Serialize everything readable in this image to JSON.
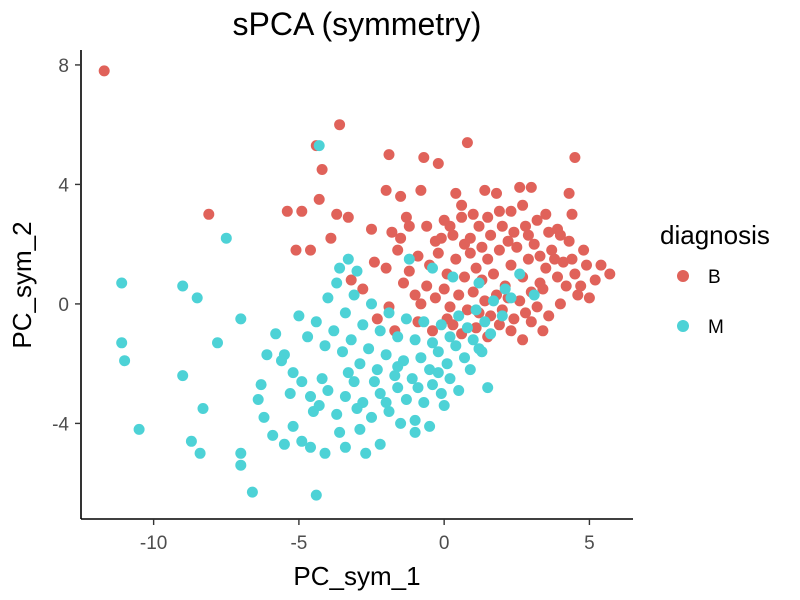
{
  "chart_data": {
    "type": "scatter",
    "title": "sPCA (symmetry)",
    "xlabel": "PC_sym_1",
    "ylabel": "PC_sym_2",
    "xlim": [
      -12.5,
      6.5
    ],
    "ylim": [
      -7.2,
      8.5
    ],
    "x_ticks": [
      -10,
      -5,
      0,
      5
    ],
    "y_ticks": [
      8,
      4,
      0,
      -4
    ],
    "x_tick_labels": [
      "-10",
      "-5",
      "0",
      "5"
    ],
    "y_tick_labels": [
      "8",
      "4",
      "0",
      "-4"
    ],
    "grid": false,
    "legend": {
      "title": "diagnosis",
      "placement": "right"
    },
    "series": [
      {
        "name": "B",
        "color": "#E0625A",
        "points": [
          [
            -11.7,
            7.8
          ],
          [
            -3.6,
            6.0
          ],
          [
            -4.4,
            5.3
          ],
          [
            -4.2,
            4.5
          ],
          [
            -1.9,
            5.0
          ],
          [
            -0.7,
            4.9
          ],
          [
            -0.2,
            4.7
          ],
          [
            0.8,
            5.4
          ],
          [
            4.5,
            4.9
          ],
          [
            -4.3,
            3.5
          ],
          [
            -5.4,
            3.1
          ],
          [
            -4.9,
            3.1
          ],
          [
            -3.7,
            3.0
          ],
          [
            -2.0,
            3.8
          ],
          [
            -1.5,
            3.6
          ],
          [
            -0.8,
            3.8
          ],
          [
            0.4,
            3.7
          ],
          [
            0.6,
            3.3
          ],
          [
            1.4,
            3.8
          ],
          [
            1.8,
            3.7
          ],
          [
            2.6,
            3.9
          ],
          [
            3.0,
            3.9
          ],
          [
            4.3,
            3.7
          ],
          [
            -8.1,
            3.0
          ],
          [
            -5.1,
            1.8
          ],
          [
            -4.6,
            1.8
          ],
          [
            -3.9,
            2.2
          ],
          [
            -2.5,
            2.5
          ],
          [
            -1.8,
            2.4
          ],
          [
            -1.5,
            2.2
          ],
          [
            -1.2,
            2.6
          ],
          [
            -0.3,
            2.1
          ],
          [
            0.0,
            2.8
          ],
          [
            0.3,
            2.3
          ],
          [
            0.6,
            2.9
          ],
          [
            0.9,
            2.2
          ],
          [
            1.2,
            2.6
          ],
          [
            1.5,
            2.9
          ],
          [
            2.0,
            2.6
          ],
          [
            2.3,
            3.1
          ],
          [
            2.7,
            3.3
          ],
          [
            3.2,
            2.8
          ],
          [
            3.5,
            3.0
          ],
          [
            3.9,
            2.5
          ],
          [
            4.4,
            3.0
          ],
          [
            -2.4,
            1.4
          ],
          [
            -2.0,
            1.2
          ],
          [
            -1.6,
            1.8
          ],
          [
            -1.2,
            1.1
          ],
          [
            -0.9,
            1.6
          ],
          [
            -0.5,
            1.3
          ],
          [
            -0.2,
            1.7
          ],
          [
            0.1,
            1.0
          ],
          [
            0.4,
            1.5
          ],
          [
            0.7,
            0.9
          ],
          [
            0.9,
            1.7
          ],
          [
            1.1,
            1.2
          ],
          [
            1.3,
            0.8
          ],
          [
            1.5,
            1.5
          ],
          [
            1.7,
            1.0
          ],
          [
            1.9,
            1.8
          ],
          [
            2.1,
            0.6
          ],
          [
            2.3,
            1.3
          ],
          [
            2.5,
            1.9
          ],
          [
            2.7,
            0.9
          ],
          [
            2.9,
            1.5
          ],
          [
            3.1,
            2.0
          ],
          [
            3.3,
            0.7
          ],
          [
            3.5,
            1.2
          ],
          [
            3.7,
            1.8
          ],
          [
            3.9,
            0.9
          ],
          [
            4.1,
            1.4
          ],
          [
            4.3,
            2.1
          ],
          [
            4.5,
            1.0
          ],
          [
            4.7,
            0.6
          ],
          [
            4.9,
            1.3
          ],
          [
            5.2,
            0.8
          ],
          [
            5.7,
            1.0
          ],
          [
            5.0,
            0.2
          ],
          [
            -3.2,
            0.8
          ],
          [
            -2.8,
            0.5
          ],
          [
            -1.4,
            0.7
          ],
          [
            -1.0,
            0.3
          ],
          [
            -0.6,
            0.6
          ],
          [
            -0.3,
            0.2
          ],
          [
            0.0,
            0.5
          ],
          [
            0.2,
            -0.1
          ],
          [
            0.5,
            0.3
          ],
          [
            0.8,
            -0.2
          ],
          [
            1.0,
            0.4
          ],
          [
            1.2,
            -0.3
          ],
          [
            1.4,
            0.1
          ],
          [
            1.6,
            -0.4
          ],
          [
            1.8,
            0.3
          ],
          [
            2.0,
            -0.2
          ],
          [
            2.2,
            0.2
          ],
          [
            2.4,
            -0.5
          ],
          [
            2.6,
            0.1
          ],
          [
            2.8,
            -0.3
          ],
          [
            3.0,
            0.4
          ],
          [
            3.2,
            -0.1
          ],
          [
            3.4,
            0.5
          ],
          [
            3.6,
            -0.4
          ],
          [
            4.0,
            0.0
          ],
          [
            4.2,
            0.6
          ],
          [
            4.6,
            0.3
          ],
          [
            -2.3,
            -0.5
          ],
          [
            -1.7,
            -0.9
          ],
          [
            -0.9,
            -0.6
          ],
          [
            -0.4,
            -0.9
          ],
          [
            0.3,
            -0.7
          ],
          [
            0.6,
            -1.0
          ],
          [
            1.1,
            -0.8
          ],
          [
            1.5,
            -1.1
          ],
          [
            1.9,
            -0.7
          ],
          [
            2.3,
            -0.9
          ],
          [
            2.7,
            -1.2
          ],
          [
            3.0,
            -0.6
          ],
          [
            3.4,
            -0.9
          ],
          [
            -3.3,
            2.9
          ],
          [
            -1.3,
            2.9
          ],
          [
            -0.6,
            2.6
          ],
          [
            0.2,
            2.6
          ],
          [
            1.0,
            3.0
          ],
          [
            1.9,
            3.1
          ],
          [
            2.9,
            2.3
          ],
          [
            3.6,
            2.4
          ],
          [
            -0.8,
            0.0
          ],
          [
            0.1,
            -0.5
          ],
          [
            1.3,
            1.9
          ],
          [
            2.4,
            2.4
          ],
          [
            3.8,
            1.5
          ],
          [
            4.8,
            1.8
          ],
          [
            -1.9,
            -0.1
          ],
          [
            -0.1,
            2.2
          ],
          [
            0.7,
            2.0
          ],
          [
            1.6,
            2.3
          ],
          [
            2.2,
            2.1
          ],
          [
            2.8,
            2.6
          ],
          [
            3.3,
            1.6
          ],
          [
            4.0,
            2.3
          ],
          [
            4.4,
            1.5
          ],
          [
            5.4,
            1.3
          ]
        ]
      },
      {
        "name": "M",
        "color": "#4DD2D6",
        "points": [
          [
            -4.3,
            5.3
          ],
          [
            -7.5,
            2.2
          ],
          [
            -11.1,
            0.7
          ],
          [
            -9.0,
            0.6
          ],
          [
            -8.5,
            0.2
          ],
          [
            -7.0,
            -0.5
          ],
          [
            -11.1,
            -1.3
          ],
          [
            -11.0,
            -1.9
          ],
          [
            -7.8,
            -1.3
          ],
          [
            -9.0,
            -2.4
          ],
          [
            -8.3,
            -3.5
          ],
          [
            -10.5,
            -4.2
          ],
          [
            -8.7,
            -4.6
          ],
          [
            -8.4,
            -5.0
          ],
          [
            -7.0,
            -5.0
          ],
          [
            -7.0,
            -5.4
          ],
          [
            -6.6,
            -6.3
          ],
          [
            -4.4,
            -6.4
          ],
          [
            -6.4,
            -3.2
          ],
          [
            -6.2,
            -3.8
          ],
          [
            -5.9,
            -4.4
          ],
          [
            -5.5,
            -4.7
          ],
          [
            -5.2,
            -4.1
          ],
          [
            -4.9,
            -4.6
          ],
          [
            -4.6,
            -4.8
          ],
          [
            -4.1,
            -5.0
          ],
          [
            -3.4,
            -4.8
          ],
          [
            -2.7,
            -5.0
          ],
          [
            -6.3,
            -2.7
          ],
          [
            -6.1,
            -1.7
          ],
          [
            -5.8,
            -1.0
          ],
          [
            -5.5,
            -1.7
          ],
          [
            -5.2,
            -2.3
          ],
          [
            -4.9,
            -2.6
          ],
          [
            -4.6,
            -3.1
          ],
          [
            -4.3,
            -3.4
          ],
          [
            -4.0,
            -2.9
          ],
          [
            -3.7,
            -3.7
          ],
          [
            -3.4,
            -3.1
          ],
          [
            -3.1,
            -2.6
          ],
          [
            -2.8,
            -3.3
          ],
          [
            -2.5,
            -3.8
          ],
          [
            -2.2,
            -3.0
          ],
          [
            -1.9,
            -3.6
          ],
          [
            -1.6,
            -2.8
          ],
          [
            -1.3,
            -3.2
          ],
          [
            -1.0,
            -3.9
          ],
          [
            -0.7,
            -3.3
          ],
          [
            -0.4,
            -2.7
          ],
          [
            -0.1,
            -3.0
          ],
          [
            0.2,
            -2.5
          ],
          [
            0.5,
            -2.9
          ],
          [
            -5.0,
            -0.4
          ],
          [
            -4.7,
            -1.1
          ],
          [
            -4.4,
            -0.6
          ],
          [
            -4.1,
            -1.4
          ],
          [
            -3.8,
            -0.9
          ],
          [
            -3.5,
            -1.6
          ],
          [
            -3.2,
            -1.2
          ],
          [
            -2.9,
            -2.0
          ],
          [
            -2.6,
            -1.5
          ],
          [
            -2.3,
            -2.2
          ],
          [
            -2.0,
            -1.7
          ],
          [
            -1.7,
            -2.4
          ],
          [
            -1.4,
            -1.9
          ],
          [
            -1.1,
            -2.5
          ],
          [
            -0.8,
            -1.8
          ],
          [
            -0.5,
            -2.2
          ],
          [
            -0.2,
            -1.6
          ],
          [
            0.1,
            -2.0
          ],
          [
            0.4,
            -1.4
          ],
          [
            0.7,
            -1.8
          ],
          [
            1.0,
            -1.2
          ],
          [
            1.3,
            -1.6
          ],
          [
            1.6,
            -1.0
          ],
          [
            -4.0,
            0.2
          ],
          [
            -3.7,
            0.7
          ],
          [
            -3.4,
            -0.3
          ],
          [
            -3.1,
            0.3
          ],
          [
            -2.8,
            -0.7
          ],
          [
            -2.5,
            0.0
          ],
          [
            -2.2,
            -0.9
          ],
          [
            -1.9,
            -0.3
          ],
          [
            -1.6,
            -1.1
          ],
          [
            -1.3,
            -0.5
          ],
          [
            -1.0,
            -1.2
          ],
          [
            -0.7,
            -0.6
          ],
          [
            -0.4,
            -1.3
          ],
          [
            -0.1,
            -0.7
          ],
          [
            0.2,
            -1.1
          ],
          [
            0.5,
            -0.4
          ],
          [
            0.8,
            -0.8
          ],
          [
            1.1,
            -0.2
          ],
          [
            1.4,
            -0.6
          ],
          [
            1.7,
            0.1
          ],
          [
            2.0,
            -0.4
          ],
          [
            2.3,
            0.2
          ],
          [
            -3.6,
            1.2
          ],
          [
            -3.3,
            1.5
          ],
          [
            -3.0,
            1.1
          ],
          [
            -1.2,
            1.5
          ],
          [
            -0.4,
            1.2
          ],
          [
            0.3,
            0.9
          ],
          [
            1.2,
            0.7
          ],
          [
            2.1,
            0.5
          ],
          [
            2.6,
            1.0
          ],
          [
            3.1,
            0.3
          ],
          [
            -1.0,
            -4.3
          ],
          [
            -2.2,
            -4.7
          ],
          [
            1.5,
            -2.8
          ],
          [
            1.2,
            -1.5
          ],
          [
            -5.6,
            -1.9
          ],
          [
            -3.0,
            -3.5
          ],
          [
            -1.5,
            -4.0
          ],
          [
            -0.5,
            -4.1
          ],
          [
            0.0,
            -3.4
          ],
          [
            -4.5,
            -3.6
          ],
          [
            -3.6,
            -4.3
          ],
          [
            -2.9,
            -4.2
          ],
          [
            -2.0,
            -3.3
          ],
          [
            -5.3,
            -3.0
          ],
          [
            -4.2,
            -2.5
          ],
          [
            -3.3,
            -2.3
          ],
          [
            -2.4,
            -2.6
          ],
          [
            -1.6,
            -2.1
          ],
          [
            -0.9,
            -2.8
          ],
          [
            -0.2,
            -2.3
          ],
          [
            0.9,
            -2.2
          ]
        ]
      }
    ]
  }
}
